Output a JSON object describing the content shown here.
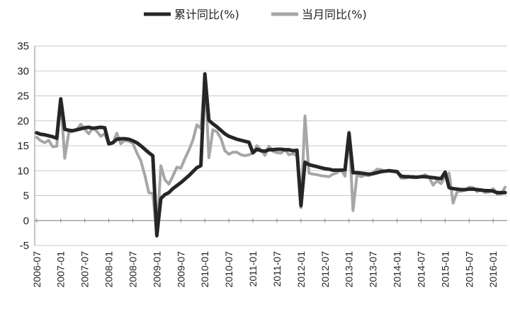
{
  "chart_data": {
    "type": "line",
    "title": "",
    "xlabel": "",
    "ylabel": "",
    "ylim": [
      -5,
      35
    ],
    "yticks": [
      "35",
      "30",
      "25",
      "20",
      "15",
      "10",
      "5",
      "0",
      "-5"
    ],
    "grid": true,
    "legend_position": "top-center",
    "x_tick_labels": [
      "2006-07",
      "2007-01",
      "2007-07",
      "2008-01",
      "2008-07",
      "2009-01",
      "2009-07",
      "2010-01",
      "2010-07",
      "2011-01",
      "2011-07",
      "2012-01",
      "2012-07",
      "2013-01",
      "2013-07",
      "2014-01",
      "2014-07",
      "2015-01",
      "2015-07",
      "2016-01"
    ],
    "x": [
      "2006-07",
      "2006-08",
      "2006-09",
      "2006-10",
      "2006-11",
      "2006-12",
      "2007-01",
      "2007-02",
      "2007-03",
      "2007-04",
      "2007-05",
      "2007-06",
      "2007-07",
      "2007-08",
      "2007-09",
      "2007-10",
      "2007-11",
      "2007-12",
      "2008-01",
      "2008-02",
      "2008-03",
      "2008-04",
      "2008-05",
      "2008-06",
      "2008-07",
      "2008-08",
      "2008-09",
      "2008-10",
      "2008-11",
      "2008-12",
      "2009-01",
      "2009-02",
      "2009-03",
      "2009-04",
      "2009-05",
      "2009-06",
      "2009-07",
      "2009-08",
      "2009-09",
      "2009-10",
      "2009-11",
      "2009-12",
      "2010-01",
      "2010-02",
      "2010-03",
      "2010-04",
      "2010-05",
      "2010-06",
      "2010-07",
      "2010-08",
      "2010-09",
      "2010-10",
      "2010-11",
      "2010-12",
      "2011-01",
      "2011-02",
      "2011-03",
      "2011-04",
      "2011-05",
      "2011-06",
      "2011-07",
      "2011-08",
      "2011-09",
      "2011-10",
      "2011-11",
      "2011-12",
      "2012-01",
      "2012-02",
      "2012-03",
      "2012-04",
      "2012-05",
      "2012-06",
      "2012-07",
      "2012-08",
      "2012-09",
      "2012-10",
      "2012-11",
      "2012-12",
      "2013-01",
      "2013-02",
      "2013-03",
      "2013-04",
      "2013-05",
      "2013-06",
      "2013-07",
      "2013-08",
      "2013-09",
      "2013-10",
      "2013-11",
      "2013-12",
      "2014-01",
      "2014-02",
      "2014-03",
      "2014-04",
      "2014-05",
      "2014-06",
      "2014-07",
      "2014-08",
      "2014-09",
      "2014-10",
      "2014-11",
      "2014-12",
      "2015-01",
      "2015-02",
      "2015-03",
      "2015-04",
      "2015-05",
      "2015-06",
      "2015-07",
      "2015-08",
      "2015-09",
      "2015-10",
      "2015-11",
      "2015-12",
      "2016-01",
      "2016-02",
      "2016-03",
      "2016-04"
    ],
    "series": [
      {
        "name": "累计同比(%)",
        "color": "#262626",
        "values": [
          17.6,
          17.3,
          17.2,
          17.0,
          16.8,
          16.5,
          24.4,
          18.3,
          18.1,
          18.0,
          18.2,
          18.4,
          18.6,
          18.7,
          18.5,
          18.6,
          18.7,
          18.6,
          15.4,
          15.6,
          16.3,
          16.4,
          16.4,
          16.3,
          16.0,
          15.6,
          15.0,
          14.3,
          13.6,
          13.0,
          -3.0,
          4.4,
          5.2,
          5.6,
          6.4,
          7.0,
          7.6,
          8.3,
          9.0,
          9.8,
          10.6,
          11.0,
          29.4,
          20.1,
          19.4,
          18.8,
          18.1,
          17.4,
          16.9,
          16.6,
          16.3,
          16.1,
          15.9,
          15.7,
          13.6,
          14.3,
          14.0,
          13.9,
          14.2,
          14.2,
          14.3,
          14.3,
          14.2,
          14.2,
          14.0,
          14.1,
          3.0,
          11.7,
          11.2,
          11.0,
          10.8,
          10.6,
          10.4,
          10.3,
          10.1,
          10.1,
          10.1,
          10.2,
          17.5,
          9.6,
          9.6,
          9.5,
          9.4,
          9.3,
          9.4,
          9.6,
          9.8,
          9.9,
          10.0,
          9.9,
          9.8,
          8.9,
          8.8,
          8.8,
          8.7,
          8.7,
          8.8,
          8.8,
          8.7,
          8.6,
          8.5,
          8.4,
          9.7,
          6.6,
          6.4,
          6.3,
          6.2,
          6.2,
          6.3,
          6.3,
          6.2,
          6.1,
          6.0,
          6.0,
          5.9,
          5.6,
          5.6,
          5.6
        ]
      },
      {
        "name": "当月同比(%)",
        "color": "#a6a6a6",
        "values": [
          16.7,
          16.0,
          15.6,
          16.1,
          14.8,
          14.9,
          24.2,
          12.5,
          17.6,
          18.0,
          18.2,
          19.3,
          18.3,
          17.4,
          18.6,
          17.9,
          16.9,
          17.4,
          15.3,
          15.5,
          17.5,
          15.4,
          16.1,
          15.9,
          15.5,
          13.6,
          12.0,
          9.1,
          5.6,
          5.4,
          -3.2,
          11.0,
          8.2,
          7.3,
          8.9,
          10.7,
          10.5,
          12.4,
          14.1,
          16.1,
          19.2,
          18.5,
          29.0,
          12.6,
          18.2,
          17.8,
          16.5,
          14.0,
          13.3,
          13.7,
          13.7,
          13.2,
          13.0,
          13.2,
          13.5,
          15.0,
          14.2,
          13.1,
          14.9,
          13.9,
          13.6,
          13.5,
          14.2,
          13.2,
          13.4,
          13.0,
          2.6,
          21.0,
          9.5,
          9.3,
          9.2,
          9.0,
          8.9,
          8.8,
          9.3,
          9.6,
          10.2,
          8.9,
          17.8,
          2.0,
          9.2,
          8.8,
          9.1,
          9.0,
          9.6,
          10.3,
          10.2,
          9.9,
          10.0,
          9.8,
          9.8,
          8.5,
          8.5,
          8.7,
          8.9,
          8.6,
          8.8,
          9.2,
          8.7,
          7.1,
          8.0,
          7.4,
          8.9,
          9.5,
          3.5,
          5.8,
          5.9,
          6.1,
          6.7,
          6.6,
          5.8,
          6.2,
          5.6,
          5.7,
          6.4,
          5.3,
          5.3,
          6.7
        ]
      }
    ]
  }
}
